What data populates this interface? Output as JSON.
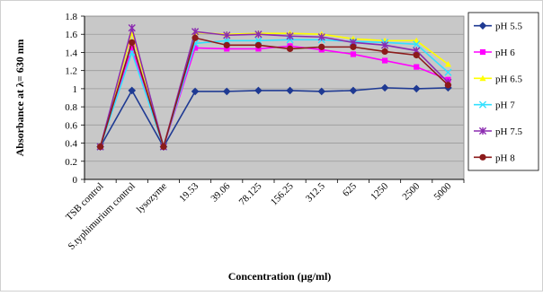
{
  "chart_data": {
    "type": "line",
    "xlabel": "Concentration (µg/ml)",
    "ylabel": "Absorbance at λ= 630 nm",
    "ylim": [
      0,
      1.8
    ],
    "yticks": [
      "0",
      "0.2",
      "0.4",
      "0.6",
      "0.8",
      "1",
      "1.2",
      "1.4",
      "1.6",
      "1.8"
    ],
    "grid": "horizontal",
    "legend_position": "right",
    "categories": [
      "TSB control",
      "S.typhimurium control",
      "lysozyme",
      "19.53",
      "39.06",
      "78.125",
      "156.25",
      "312.5",
      "625",
      "1250",
      "2500",
      "5000"
    ],
    "series": [
      {
        "name": "pH 5.5",
        "color": "#1f3a93",
        "marker": "diamond",
        "values": [
          0.36,
          0.98,
          0.36,
          0.97,
          0.97,
          0.98,
          0.98,
          0.97,
          0.98,
          1.01,
          1.0,
          1.01
        ]
      },
      {
        "name": "pH 6",
        "color": "#ff00ff",
        "marker": "square",
        "values": [
          0.36,
          1.45,
          0.36,
          1.45,
          1.44,
          1.44,
          1.47,
          1.43,
          1.38,
          1.31,
          1.24,
          1.1
        ]
      },
      {
        "name": "pH 6.5",
        "color": "#ffff00",
        "marker": "triangle",
        "values": [
          0.36,
          1.62,
          0.36,
          1.62,
          1.6,
          1.61,
          1.61,
          1.6,
          1.55,
          1.53,
          1.53,
          1.27
        ]
      },
      {
        "name": "pH 7",
        "color": "#33e0ff",
        "marker": "x",
        "values": [
          0.36,
          1.4,
          0.36,
          1.5,
          1.53,
          1.53,
          1.54,
          1.54,
          1.52,
          1.51,
          1.49,
          1.18
        ]
      },
      {
        "name": "pH 7.5",
        "color": "#8b2bb0",
        "marker": "star",
        "values": [
          0.36,
          1.67,
          0.36,
          1.63,
          1.59,
          1.6,
          1.58,
          1.57,
          1.51,
          1.48,
          1.42,
          1.07
        ]
      },
      {
        "name": "pH 8",
        "color": "#8b1a1a",
        "marker": "circle",
        "values": [
          0.36,
          1.51,
          0.36,
          1.56,
          1.48,
          1.48,
          1.44,
          1.46,
          1.46,
          1.41,
          1.37,
          1.04
        ]
      }
    ]
  }
}
